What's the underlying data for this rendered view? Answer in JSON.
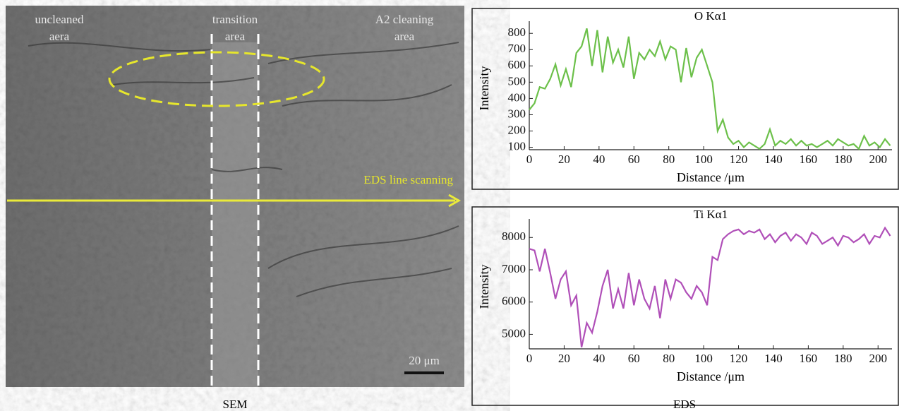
{
  "image": {
    "left_label": [
      "uncleaned",
      "aera"
    ],
    "middle_label": [
      "transition",
      "area"
    ],
    "right_label": [
      "A2 cleaning",
      "area"
    ],
    "scan_label": "EDS line scanning",
    "scale_bar": "20 μm"
  },
  "captions": [
    "SEM",
    "EDS"
  ],
  "chart_data": [
    {
      "type": "line",
      "title": "O Kα1",
      "xlabel": "Distance /μm",
      "ylabel": "Intensity",
      "x": [
        0,
        3,
        6,
        9,
        12,
        15,
        18,
        21,
        24,
        27,
        30,
        33,
        36,
        39,
        42,
        45,
        48,
        51,
        54,
        57,
        60,
        63,
        66,
        69,
        72,
        75,
        78,
        81,
        84,
        87,
        90,
        93,
        96,
        99,
        102,
        105,
        108,
        111,
        114,
        117,
        120,
        123,
        126,
        129,
        132,
        135,
        138,
        141,
        144,
        147,
        150,
        153,
        156,
        159,
        162,
        165,
        168,
        171,
        174,
        177,
        180,
        183,
        186,
        189,
        192,
        195,
        198,
        201,
        204,
        207
      ],
      "series": [
        {
          "color": "#6cc04a",
          "values": [
            330,
            370,
            470,
            460,
            520,
            610,
            480,
            580,
            470,
            680,
            720,
            830,
            600,
            820,
            560,
            780,
            620,
            700,
            590,
            780,
            520,
            680,
            640,
            700,
            660,
            750,
            640,
            720,
            700,
            500,
            710,
            530,
            650,
            700,
            600,
            500,
            200,
            270,
            160,
            120,
            140,
            100,
            130,
            110,
            90,
            120,
            210,
            110,
            140,
            120,
            150,
            110,
            140,
            110,
            120,
            100,
            120,
            140,
            110,
            150,
            130,
            110,
            120,
            90,
            170,
            110,
            130,
            100,
            150,
            110
          ]
        }
      ],
      "xlim": [
        0,
        208
      ],
      "xticks": [
        0,
        20,
        40,
        60,
        80,
        100,
        120,
        140,
        160,
        180,
        200
      ],
      "ylim": [
        85,
        840
      ],
      "yticks": [
        100,
        200,
        300,
        400,
        500,
        600,
        700,
        800
      ]
    },
    {
      "type": "line",
      "title": "Ti Kα1",
      "xlabel": "Distance /μm",
      "ylabel": "Intensity",
      "x": [
        0,
        3,
        6,
        9,
        12,
        15,
        18,
        21,
        24,
        27,
        30,
        33,
        36,
        39,
        42,
        45,
        48,
        51,
        54,
        57,
        60,
        63,
        66,
        69,
        72,
        75,
        78,
        81,
        84,
        87,
        90,
        93,
        96,
        99,
        102,
        105,
        108,
        111,
        114,
        117,
        120,
        123,
        126,
        129,
        132,
        135,
        138,
        141,
        144,
        147,
        150,
        153,
        156,
        159,
        162,
        165,
        168,
        171,
        174,
        177,
        180,
        183,
        186,
        189,
        192,
        195,
        198,
        201,
        204,
        207
      ],
      "series": [
        {
          "color": "#b04fb8",
          "values": [
            7650,
            7600,
            6950,
            7650,
            6900,
            6100,
            6700,
            6950,
            5900,
            6200,
            4600,
            5350,
            5050,
            5700,
            6500,
            7000,
            5800,
            6400,
            5800,
            6900,
            5900,
            6700,
            6100,
            5800,
            6500,
            5500,
            6700,
            6100,
            6700,
            6600,
            6300,
            6100,
            6500,
            6300,
            5900,
            7400,
            7300,
            7950,
            8100,
            8200,
            8250,
            8100,
            8200,
            8150,
            8250,
            7950,
            8100,
            7850,
            8050,
            8150,
            7900,
            8100,
            8000,
            7800,
            8150,
            8050,
            7800,
            7900,
            8000,
            7750,
            8050,
            8000,
            7850,
            7950,
            8100,
            7800,
            8050,
            8000,
            8300,
            8050
          ]
        }
      ],
      "xlim": [
        0,
        208
      ],
      "xticks": [
        0,
        20,
        40,
        60,
        80,
        100,
        120,
        140,
        160,
        180,
        200
      ],
      "ylim": [
        4550,
        8400
      ],
      "yticks": [
        5000,
        6000,
        7000,
        8000
      ]
    }
  ]
}
